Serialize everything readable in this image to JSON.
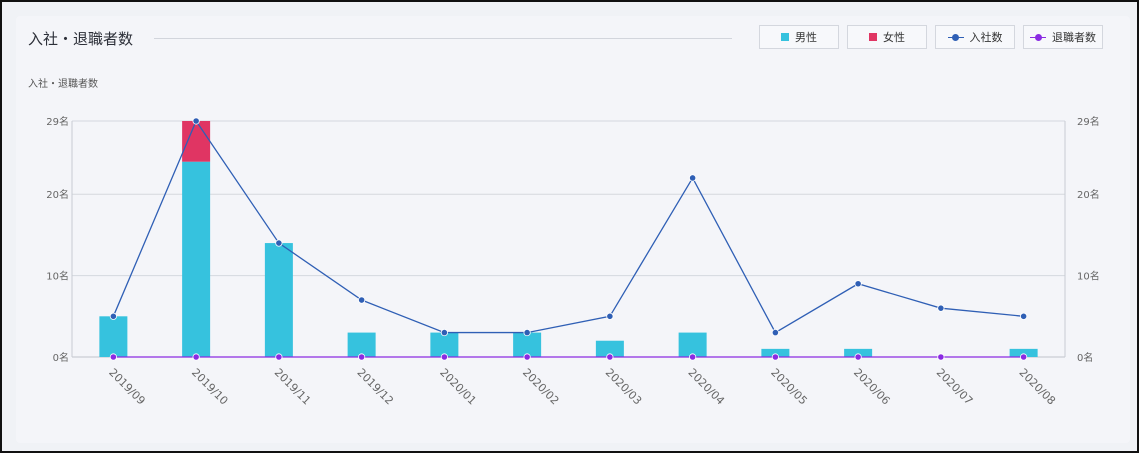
{
  "header": {
    "title": "入社・退職者数"
  },
  "legend": [
    {
      "label": "男性",
      "kind": "square",
      "color": "#36c2de"
    },
    {
      "label": "女性",
      "kind": "square",
      "color": "#e03563"
    },
    {
      "label": "入社数",
      "kind": "line",
      "color": "#2f5fb5"
    },
    {
      "label": "退職者数",
      "kind": "line",
      "color": "#8a2be2"
    }
  ],
  "chart_data": {
    "type": "bar",
    "title": "入社・退職者数",
    "categories": [
      "2019/09",
      "2019/10",
      "2019/11",
      "2019/12",
      "2020/01",
      "2020/02",
      "2020/03",
      "2020/04",
      "2020/05",
      "2020/06",
      "2020/07",
      "2020/08"
    ],
    "series": [
      {
        "name": "男性",
        "type": "bar",
        "stack": "gender",
        "color": "#36c2de",
        "values": [
          5,
          24,
          14,
          3,
          3,
          3,
          2,
          3,
          1,
          1,
          0,
          1
        ]
      },
      {
        "name": "女性",
        "type": "bar",
        "stack": "gender",
        "color": "#e03563",
        "values": [
          0,
          5,
          0,
          0,
          0,
          0,
          0,
          0,
          0,
          0,
          0,
          0
        ]
      },
      {
        "name": "入社数",
        "type": "line",
        "color": "#2f5fb5",
        "values": [
          5,
          29,
          14,
          7,
          3,
          3,
          5,
          22,
          3,
          9,
          6,
          5
        ]
      },
      {
        "name": "退職者数",
        "type": "line",
        "color": "#8a2be2",
        "values": [
          0,
          0,
          0,
          0,
          0,
          0,
          0,
          0,
          0,
          0,
          0,
          0
        ]
      }
    ],
    "ylim": [
      0,
      29
    ],
    "yticks": [
      {
        "value": 0,
        "label": "0名"
      },
      {
        "value": 10,
        "label": "10名"
      },
      {
        "value": 20,
        "label": "20名"
      },
      {
        "value": 29,
        "label": "29名"
      }
    ],
    "ylabel": "入社・退職者数",
    "xlabel": "",
    "grid": true,
    "legend_position": "top-right"
  }
}
